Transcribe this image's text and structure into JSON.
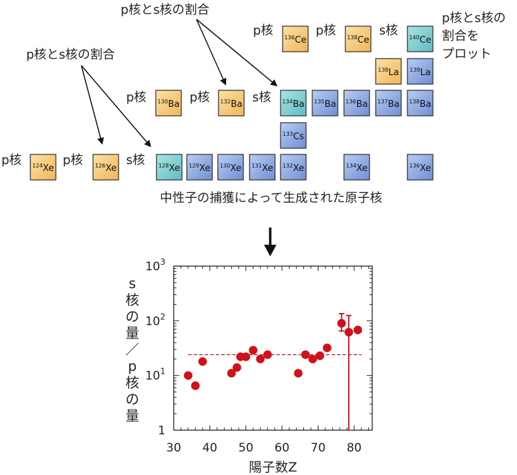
{
  "top": {
    "annotations": {
      "ratio_top": "p核とs核の割合",
      "ratio_left": "p核とs核の割合",
      "ratio_right_line1": "p核とs核の",
      "ratio_right_line2": "割合を",
      "ratio_right_line3": "プロット"
    },
    "caption": "中性子の捕獲によって生成された原子核",
    "row_labels": {
      "xe_p1": "p核",
      "xe_p2": "p核",
      "xe_s": "s核",
      "ba_p1": "p核",
      "ba_p2": "p核",
      "ba_s": "s核",
      "ce_p1": "p核",
      "ce_p2": "p核",
      "ce_s": "s核"
    },
    "nuclides": {
      "xe124": {
        "mass": "124",
        "sym": "Xe"
      },
      "xe126": {
        "mass": "126",
        "sym": "Xe"
      },
      "xe128": {
        "mass": "128",
        "sym": "Xe"
      },
      "xe129": {
        "mass": "129",
        "sym": "Xe"
      },
      "xe130": {
        "mass": "130",
        "sym": "Xe"
      },
      "xe131": {
        "mass": "131",
        "sym": "Xe"
      },
      "xe132": {
        "mass": "132",
        "sym": "Xe"
      },
      "xe134": {
        "mass": "134",
        "sym": "Xe"
      },
      "xe136": {
        "mass": "136",
        "sym": "Xe"
      },
      "cs133": {
        "mass": "133",
        "sym": "Cs"
      },
      "ba130": {
        "mass": "130",
        "sym": "Ba"
      },
      "ba132": {
        "mass": "132",
        "sym": "Ba"
      },
      "ba134": {
        "mass": "134",
        "sym": "Ba"
      },
      "ba135": {
        "mass": "135",
        "sym": "Ba"
      },
      "ba136": {
        "mass": "136",
        "sym": "Ba"
      },
      "ba137": {
        "mass": "137",
        "sym": "Ba"
      },
      "ba138": {
        "mass": "138",
        "sym": "Ba"
      },
      "la138": {
        "mass": "138",
        "sym": "La"
      },
      "la139": {
        "mass": "139",
        "sym": "La"
      },
      "ce136": {
        "mass": "136",
        "sym": "Ce"
      },
      "ce138": {
        "mass": "138",
        "sym": "Ce"
      },
      "ce140": {
        "mass": "140",
        "sym": "Ce"
      }
    },
    "colors": {
      "p_nucleus": "#f6c77a",
      "s_nucleus": "#7fd3cf",
      "s_process": "#8fb0e6"
    }
  },
  "chart_data": {
    "type": "scatter",
    "xlabel": "陽子数Z",
    "ylabel": "s核の量／p核の量",
    "ylabel_chars": [
      "s",
      "核",
      "の",
      "量",
      "／",
      "p",
      "核",
      "の",
      "量"
    ],
    "xlim": [
      30,
      85
    ],
    "ylim": [
      1,
      1000
    ],
    "yscale": "log",
    "xticks": [
      "30",
      "40",
      "50",
      "60",
      "70",
      "80"
    ],
    "yticks": [
      {
        "base": "1",
        "exp": ""
      },
      {
        "base": "10",
        "exp": "1"
      },
      {
        "base": "10",
        "exp": "2"
      },
      {
        "base": "10",
        "exp": "3"
      }
    ],
    "points": [
      {
        "x": 34,
        "y": 10
      },
      {
        "x": 36,
        "y": 6.5
      },
      {
        "x": 38,
        "y": 18
      },
      {
        "x": 46,
        "y": 11
      },
      {
        "x": 47.5,
        "y": 14
      },
      {
        "x": 48.5,
        "y": 22
      },
      {
        "x": 50,
        "y": 22
      },
      {
        "x": 52,
        "y": 29
      },
      {
        "x": 54,
        "y": 20
      },
      {
        "x": 56,
        "y": 24
      },
      {
        "x": 64.5,
        "y": 11
      },
      {
        "x": 66.5,
        "y": 24
      },
      {
        "x": 68.5,
        "y": 20
      },
      {
        "x": 70.5,
        "y": 23
      },
      {
        "x": 72.5,
        "y": 32
      },
      {
        "x": 76.5,
        "y": 90,
        "err_low": 65,
        "err_high": 135
      },
      {
        "x": 78.5,
        "y": 62,
        "err_low": 1,
        "err_high": 125
      },
      {
        "x": 81,
        "y": 68
      }
    ],
    "reference_line_y": 24,
    "marker_color": "#d0111b",
    "line_color": "#c0101a"
  }
}
